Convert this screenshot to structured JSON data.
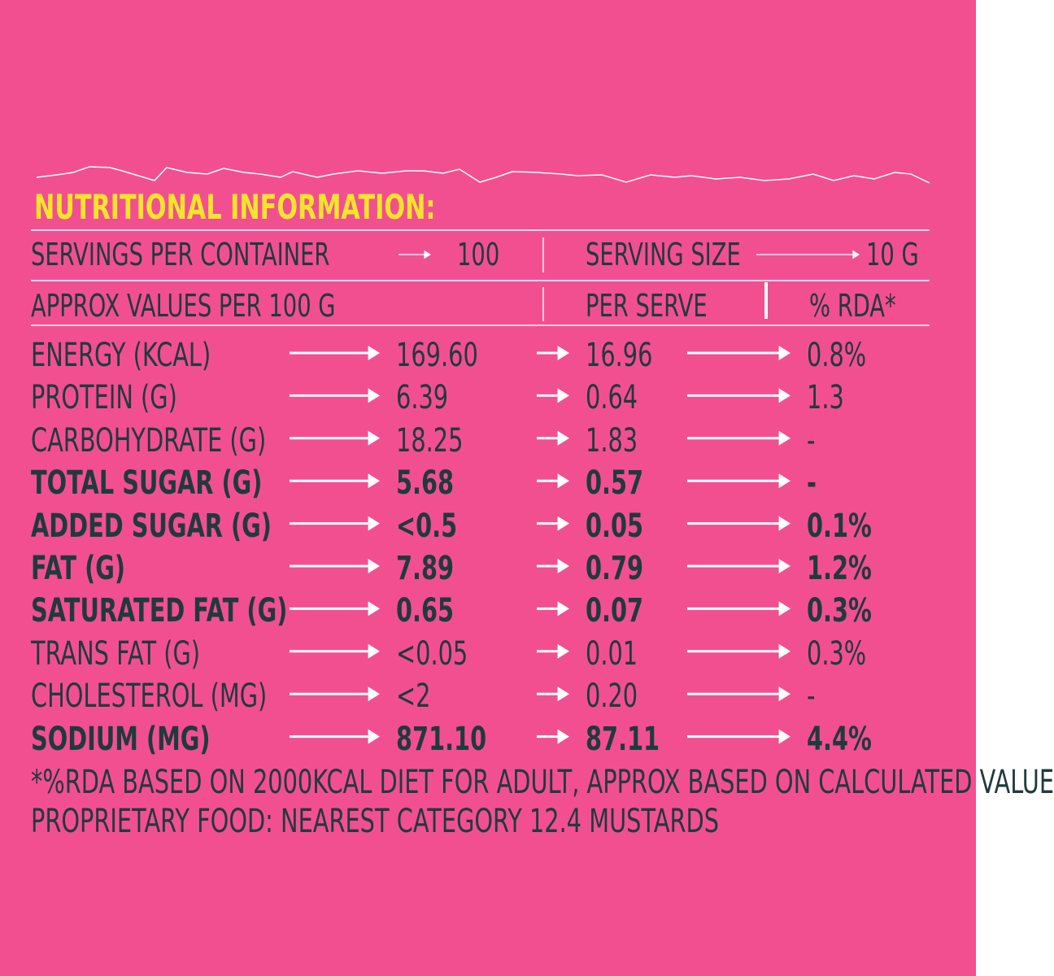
{
  "title": "NUTRITIONAL INFORMATION:",
  "servings": {
    "label": "SERVINGS PER CONTAINER",
    "value": "100",
    "size_label": "SERVING SIZE",
    "size_value": "10 G"
  },
  "columns": {
    "basis": "APPROX VALUES PER 100 G",
    "per_serve": "PER SERVE",
    "rda": "% RDA*"
  },
  "rows": [
    {
      "name": "ENERGY (KCAL)",
      "per_100g": "169.60",
      "per_serve": "16.96",
      "rda": "0.8%",
      "bold": false
    },
    {
      "name": "PROTEIN (G)",
      "per_100g": "6.39",
      "per_serve": "0.64",
      "rda": "1.3",
      "bold": false
    },
    {
      "name": "CARBOHYDRATE (G)",
      "per_100g": "18.25",
      "per_serve": "1.83",
      "rda": "-",
      "bold": false
    },
    {
      "name": "TOTAL SUGAR (G)",
      "per_100g": "5.68",
      "per_serve": "0.57",
      "rda": "-",
      "bold": true
    },
    {
      "name": "ADDED SUGAR (G)",
      "per_100g": "<0.5",
      "per_serve": "0.05",
      "rda": "0.1%",
      "bold": true
    },
    {
      "name": "FAT (G)",
      "per_100g": "7.89",
      "per_serve": "0.79",
      "rda": "1.2%",
      "bold": true
    },
    {
      "name": "SATURATED FAT (G)",
      "per_100g": "0.65",
      "per_serve": "0.07",
      "rda": "0.3%",
      "bold": true
    },
    {
      "name": "TRANS FAT (G)",
      "per_100g": "<0.05",
      "per_serve": "0.01",
      "rda": "0.3%",
      "bold": false
    },
    {
      "name": "CHOLESTEROL (MG)",
      "per_100g": "<2",
      "per_serve": "0.20",
      "rda": "-",
      "bold": false
    },
    {
      "name": "SODIUM (MG)",
      "per_100g": "871.10",
      "per_serve": "87.11",
      "rda": "4.4%",
      "bold": true
    }
  ],
  "footnotes": [
    "*%RDA BASED ON 2000KCAL DIET FOR ADULT, APPROX BASED ON CALCULATED VALUE",
    "PROPRIETARY FOOD: NEAREST CATEGORY 12.4 MUSTARDS"
  ]
}
